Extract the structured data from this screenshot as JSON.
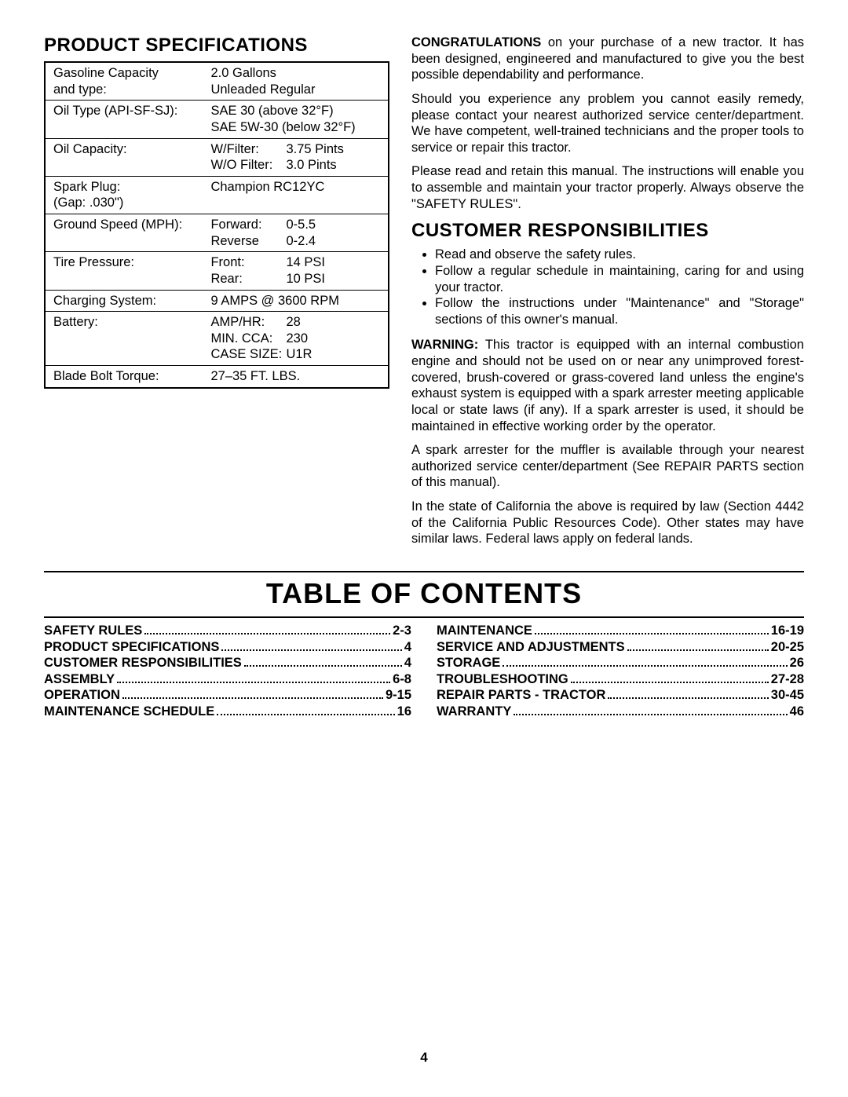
{
  "specs": {
    "title": "PRODUCT SPECIFICATIONS",
    "rows": [
      {
        "label": "Gasoline Capacity\nand type:",
        "lines": [
          "2.0 Gallons",
          "Unleaded Regular"
        ]
      },
      {
        "label": "Oil Type (API-SF-SJ):",
        "lines": [
          "SAE 30 (above 32°F)",
          "SAE 5W-30 (below 32°F)"
        ]
      },
      {
        "label": "Oil Capacity:",
        "pairs": [
          [
            "W/Filter:",
            "3.75 Pints"
          ],
          [
            "W/O Filter:",
            "3.0 Pints"
          ]
        ]
      },
      {
        "label": "Spark Plug:\n(Gap: .030\")",
        "lines": [
          "Champion RC12YC"
        ]
      },
      {
        "label": "Ground Speed (MPH):",
        "pairs": [
          [
            "Forward:",
            "0-5.5"
          ],
          [
            "Reverse",
            "0-2.4"
          ]
        ]
      },
      {
        "label": "Tire Pressure:",
        "pairs": [
          [
            "Front:",
            "14 PSI"
          ],
          [
            "Rear:",
            "10 PSI"
          ]
        ]
      },
      {
        "label": "Charging System:",
        "lines": [
          "9 AMPS @ 3600 RPM"
        ]
      },
      {
        "label": "Battery:",
        "pairs": [
          [
            "AMP/HR:",
            "28"
          ],
          [
            "MIN. CCA:",
            "230"
          ],
          [
            "CASE SIZE:",
            "U1R"
          ]
        ]
      },
      {
        "label": "Blade Bolt Torque:",
        "lines": [
          "27–35 FT. LBS."
        ]
      }
    ]
  },
  "right": {
    "congrats_label": "CONGRATULATIONS",
    "congrats_rest": " on your purchase of a new tractor. It has been designed, engineered and manufactured to give you the best possible dependability and performance.",
    "para2": "Should you experience any problem you cannot easily remedy, please contact your nearest authorized service center/department. We have competent, well-trained technicians and the proper tools to service or repair this tractor.",
    "para3": "Please read and retain this manual. The instructions will enable you to assemble and maintain your tractor properly. Always observe the \"SAFETY RULES\".",
    "cust_title": "CUSTOMER RESPONSIBILITIES",
    "cust_items": [
      "Read and observe the safety rules.",
      "Follow a regular schedule in maintaining, caring for and using your tractor.",
      "Follow the instructions under \"Maintenance\" and \"Storage\" sections of this owner's manual."
    ],
    "warning_label": "WARNING:",
    "warning_rest": " This tractor is equipped with an internal combustion engine and should not be used on or near any unimproved forest-covered, brush-covered or grass-covered land unless the engine's exhaust system is equipped with a spark arrester meeting applicable local or state laws (if any). If a spark arrester is used, it should be maintained in effective working order by the operator.",
    "para5": "A spark arrester for the muffler is available through your nearest authorized service center/department (See REPAIR PARTS section of this manual).",
    "para6": "In the state of California the above is required by law (Section 4442 of the California Public Resources Code). Other states may have similar laws. Federal laws apply on federal lands."
  },
  "toc": {
    "title": "TABLE OF CONTENTS",
    "left": [
      {
        "label": "SAFETY RULES",
        "page": "2-3"
      },
      {
        "label": "PRODUCT SPECIFICATIONS",
        "page": "4"
      },
      {
        "label": "CUSTOMER RESPONSIBILITIES",
        "page": "4"
      },
      {
        "label": "ASSEMBLY",
        "page": "6-8"
      },
      {
        "label": "OPERATION",
        "page": "9-15"
      },
      {
        "label": "MAINTENANCE SCHEDULE",
        "page": "16"
      }
    ],
    "right": [
      {
        "label": "MAINTENANCE",
        "page": "16-19"
      },
      {
        "label": "SERVICE AND ADJUSTMENTS",
        "page": "20-25"
      },
      {
        "label": "STORAGE",
        "page": "26"
      },
      {
        "label": "TROUBLESHOOTING",
        "page": "27-28"
      },
      {
        "label": "REPAIR PARTS - TRACTOR",
        "page": "30-45"
      },
      {
        "label": "WARRANTY",
        "page": "46"
      }
    ]
  },
  "page_number": "4"
}
